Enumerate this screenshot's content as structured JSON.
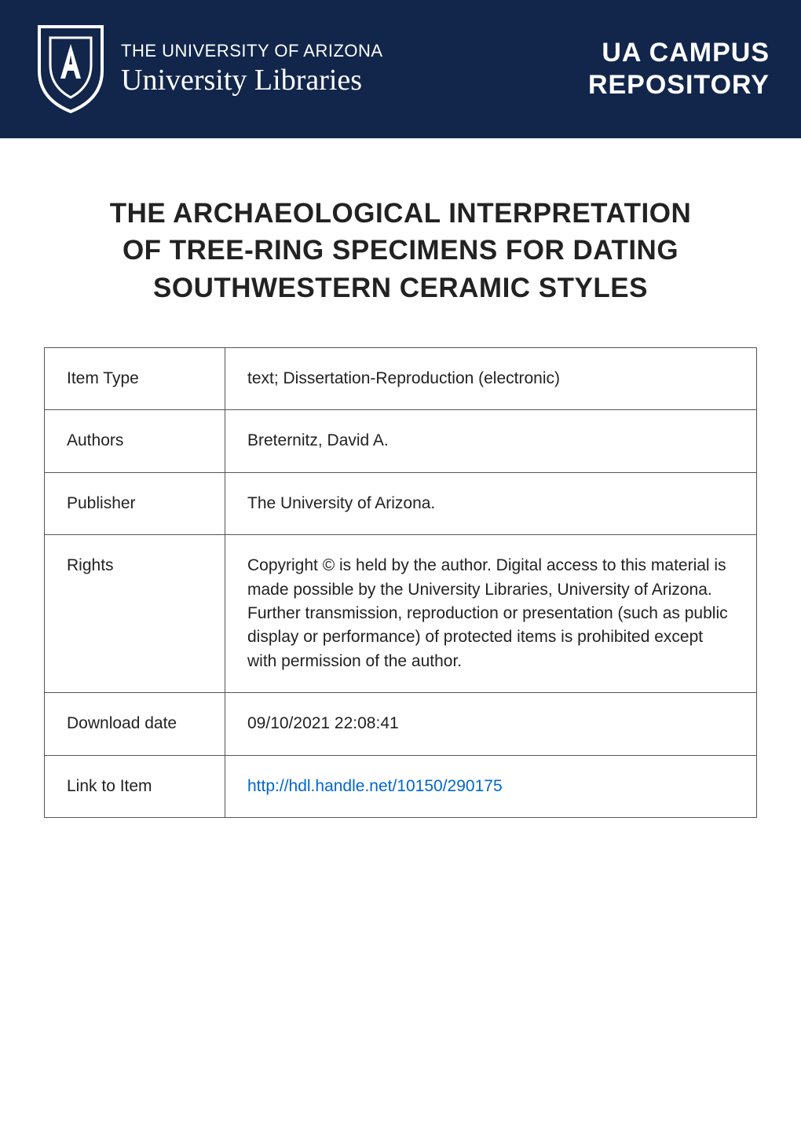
{
  "banner": {
    "background_color": "#12264b",
    "text_color": "#ffffff",
    "logo_outline": "#ffffff",
    "sub": "THE UNIVERSITY OF ARIZONA",
    "main": "University Libraries",
    "right_line1": "UA CAMPUS",
    "right_line2": "REPOSITORY"
  },
  "title": {
    "line1": "THE ARCHAEOLOGICAL INTERPRETATION",
    "line2": "OF TREE-RING SPECIMENS FOR DATING",
    "line3": "SOUTHWESTERN CERAMIC STYLES",
    "color": "#222222"
  },
  "table": {
    "border_color": "#555555",
    "text_color": "#222222",
    "link_color": "#0066cc",
    "rows": [
      {
        "key": "Item Type",
        "value": "text; Dissertation-Reproduction (electronic)"
      },
      {
        "key": "Authors",
        "value": "Breternitz, David A."
      },
      {
        "key": "Publisher",
        "value": "The University of Arizona."
      },
      {
        "key": "Rights",
        "value": "Copyright © is held by the author. Digital access to this material is made possible by the University Libraries, University of Arizona. Further transmission, reproduction or presentation (such as public display or performance) of protected items is prohibited except with permission of the author."
      },
      {
        "key": "Download date",
        "value": "09/10/2021 22:08:41"
      },
      {
        "key": "Link to Item",
        "value": "http://hdl.handle.net/10150/290175",
        "is_link": true
      }
    ]
  }
}
